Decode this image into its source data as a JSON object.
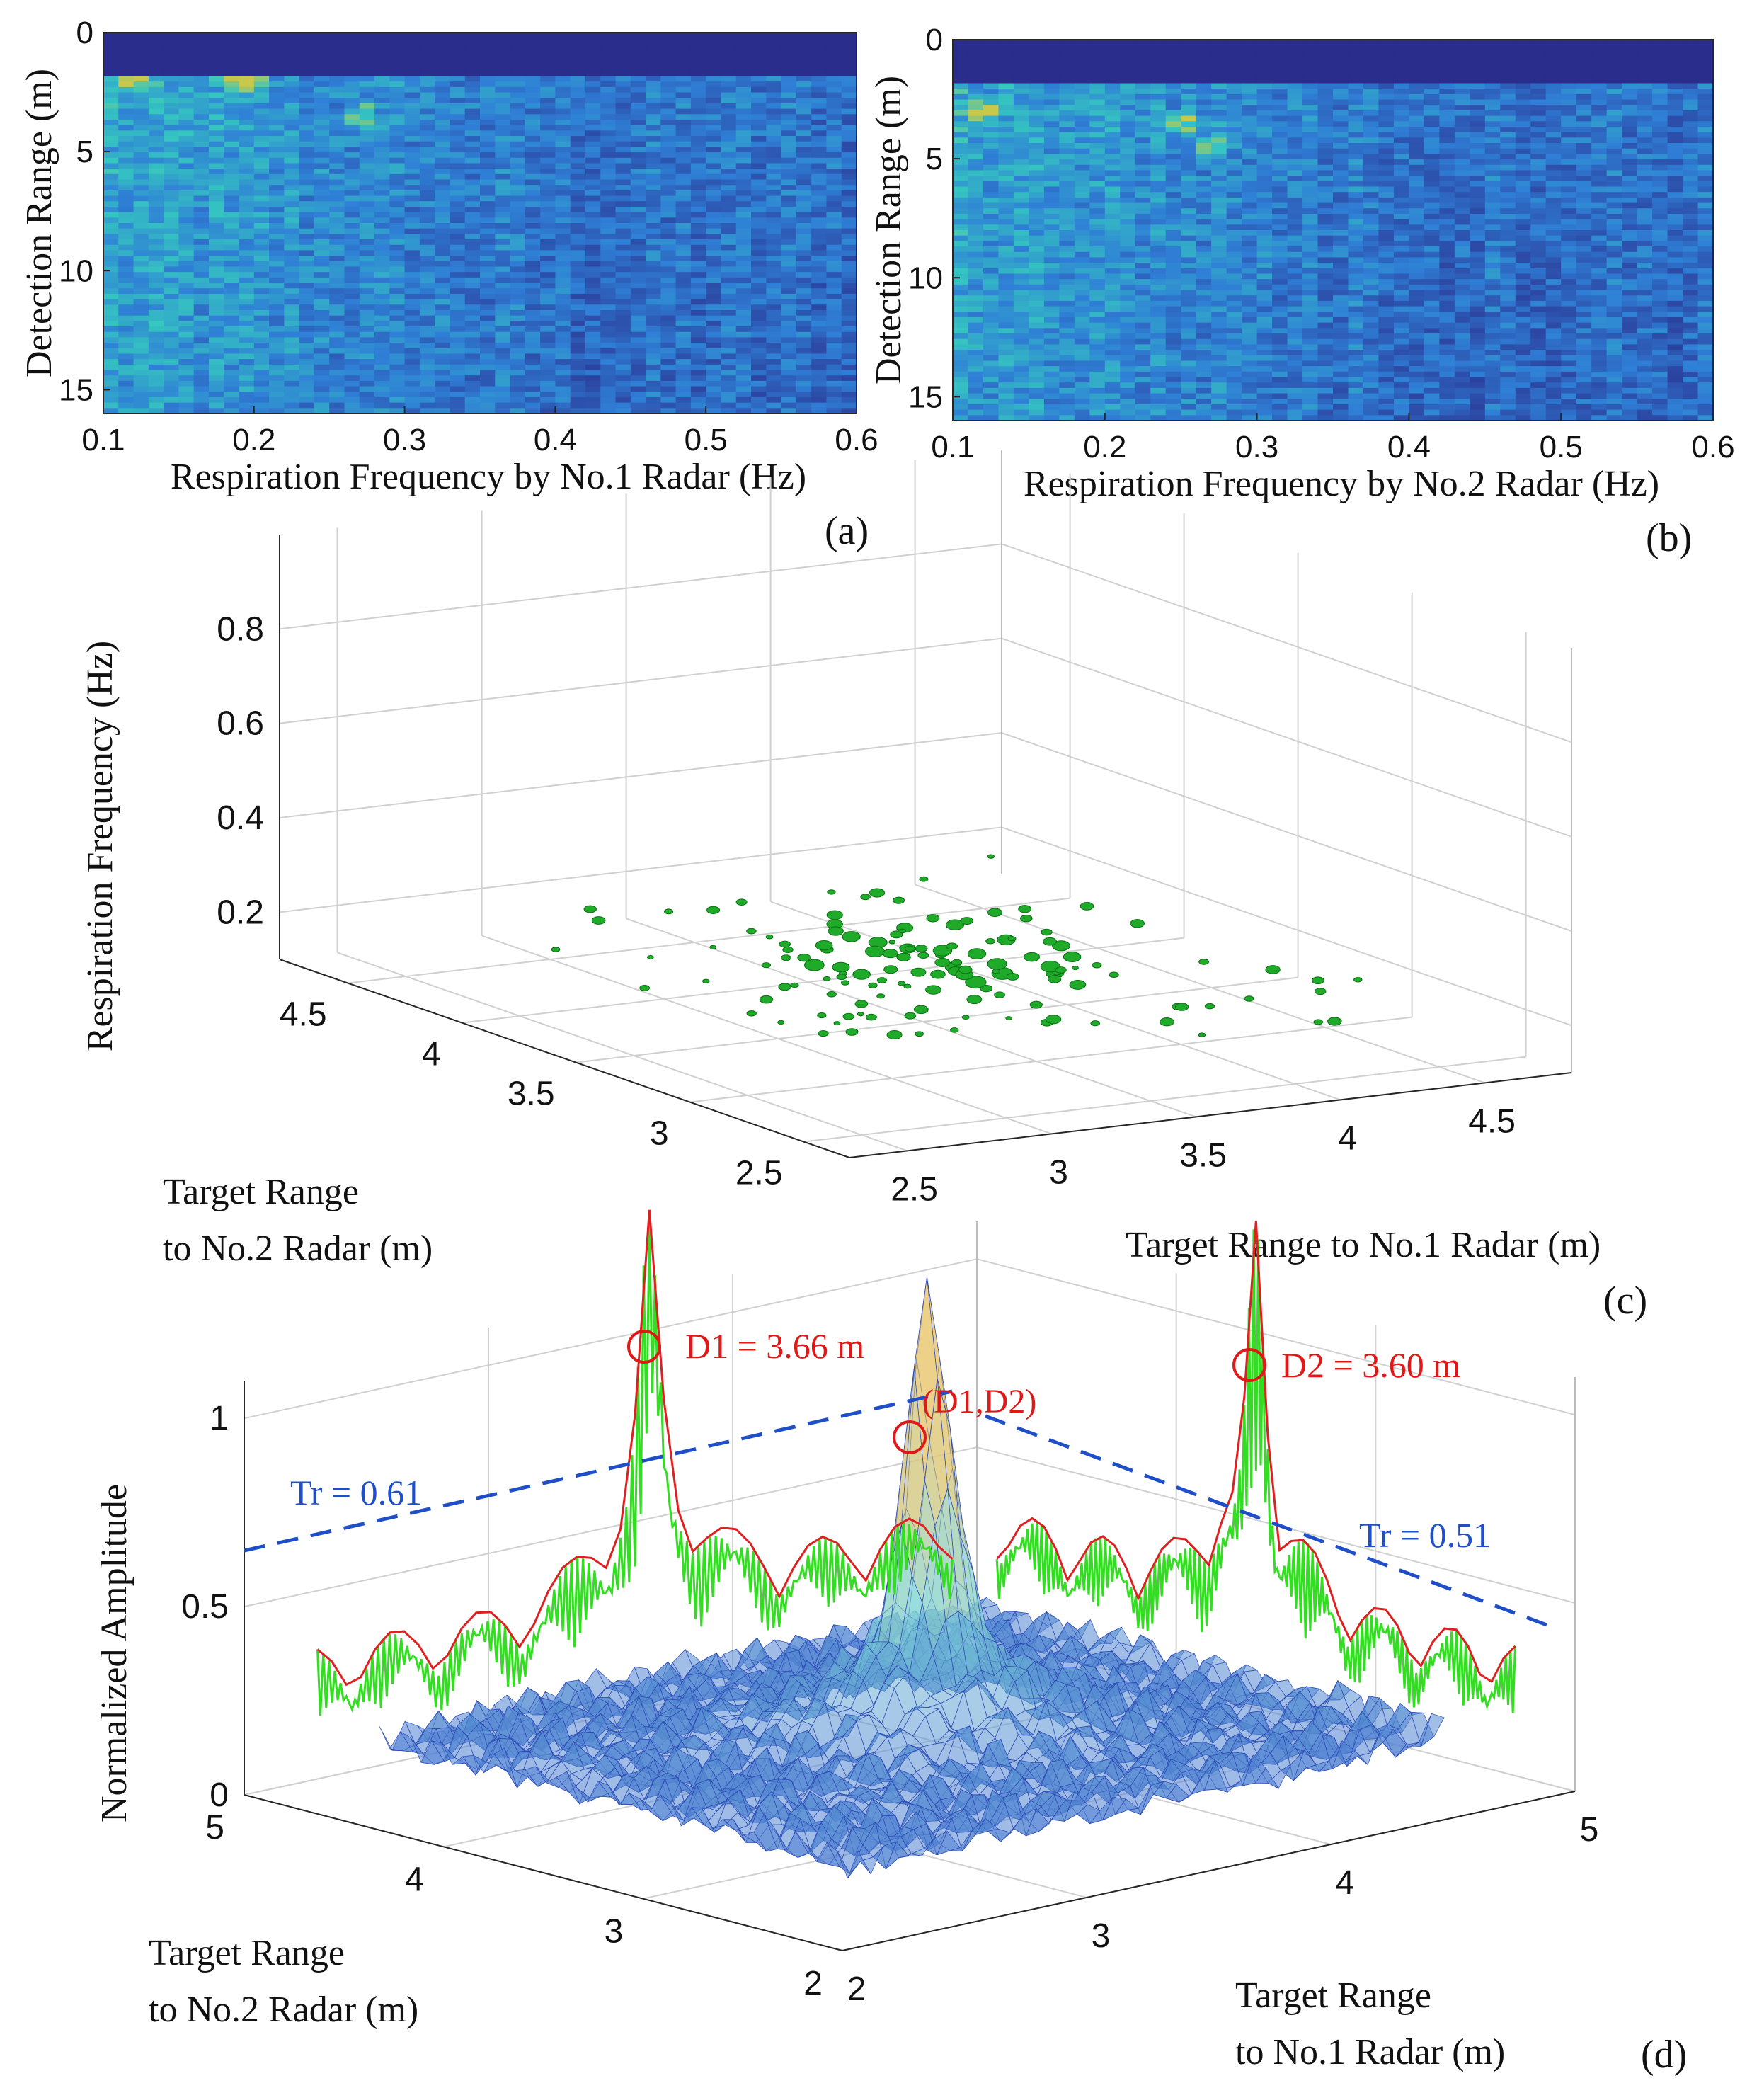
{
  "figure_caption_labels": [
    "(a)",
    "(b)",
    "(c)",
    "(d)"
  ],
  "colors": {
    "heatmap_low": "#2a2d8c",
    "heatmap_mid": "#2f7fd6",
    "heatmap_high": "#35c7c0",
    "heatmap_peak": "#c8c84a",
    "blob_green": "#1faa2a",
    "mesh_blue": "#3b5fd0",
    "mesh_cyan": "#7fd6d6",
    "mesh_peak": "#e9c46a",
    "line_green": "#33dd22",
    "line_red": "#e02020",
    "threshold_blue": "#1f4fc8",
    "annotation_red": "#e01818",
    "annotation_blue": "#1f4fc8",
    "axis": "#262626",
    "grid": "#d0d0d0"
  },
  "chart_data": [
    {
      "id": "a",
      "type": "heatmap",
      "xlabel": "Respiration Frequency by No.1 Radar (Hz)",
      "ylabel": "Detection Range (m)",
      "xlim": [
        0.1,
        0.6
      ],
      "ylim": [
        0,
        16
      ],
      "xticks": [
        "0.1",
        "0.2",
        "0.3",
        "0.4",
        "0.5",
        "0.6"
      ],
      "yticks": [
        "0",
        "5",
        "10",
        "15"
      ],
      "blank_band_m": [
        0,
        1.8
      ],
      "hot_spots_hz_m": [
        [
          0.12,
          2.0
        ],
        [
          0.19,
          2.0
        ],
        [
          0.2,
          2.0
        ],
        [
          0.27,
          3.5
        ]
      ],
      "panel_label": "(a)"
    },
    {
      "id": "b",
      "type": "heatmap",
      "xlabel": "Respiration Frequency by No.2 Radar (Hz)",
      "ylabel": "Detection Range (m)",
      "xlim": [
        0.1,
        0.6
      ],
      "ylim": [
        0,
        16
      ],
      "xticks": [
        "0.1",
        "0.2",
        "0.3",
        "0.4",
        "0.5",
        "0.6"
      ],
      "yticks": [
        "0",
        "5",
        "10",
        "15"
      ],
      "blank_band_m": [
        0,
        1.8
      ],
      "hot_spots_hz_m": [
        [
          0.27,
          4.5
        ],
        [
          0.12,
          3.0
        ],
        [
          0.25,
          3.5
        ]
      ],
      "panel_label": "(b)"
    },
    {
      "id": "c",
      "type": "scatter",
      "zlabel": "Respiration Frequency (Hz)",
      "xlabel": "Target Range to No.1 Radar (m)",
      "ylabel_line1": "Target Range",
      "ylabel_line2": "to No.2 Radar (m)",
      "zticks": [
        "0.2",
        "0.4",
        "0.6",
        "0.8"
      ],
      "xticks": [
        "2.5",
        "3",
        "3.5",
        "4",
        "4.5"
      ],
      "yticks": [
        "2.5",
        "3",
        "3.5",
        "4",
        "4.5"
      ],
      "xlim": [
        2.3,
        4.8
      ],
      "ylim": [
        2.3,
        4.8
      ],
      "zlim": [
        0.1,
        1.0
      ],
      "cluster_center_m": [
        3.66,
        3.6
      ],
      "cluster_frequency_hz": 0.2,
      "panel_label": "(c)"
    },
    {
      "id": "d",
      "type": "surface",
      "zlabel": "Normalized Amplitude",
      "xlabel_line1": "Target Range",
      "xlabel_line2": "to No.1 Radar (m)",
      "ylabel_line1": "Target Range",
      "ylabel_line2": "to No.2 Radar (m)",
      "zticks": [
        "0",
        "0.5",
        "1"
      ],
      "xticks": [
        "2",
        "3",
        "4",
        "5"
      ],
      "yticks": [
        "2",
        "3",
        "4",
        "5"
      ],
      "xlim": [
        2,
        5
      ],
      "ylim": [
        2,
        5
      ],
      "zlim": [
        0,
        1.1
      ],
      "peak_xy_m": [
        3.66,
        3.6
      ],
      "peak_amplitude": 0.95,
      "threshold_left": 0.61,
      "threshold_right": 0.51,
      "annotations": {
        "d1": "D1 = 3.66 m",
        "d2": "D2 = 3.60 m",
        "joint": "(D1,D2)",
        "tr_left": "Tr = 0.61",
        "tr_right": "Tr = 0.51"
      },
      "panel_label": "(d)"
    }
  ]
}
